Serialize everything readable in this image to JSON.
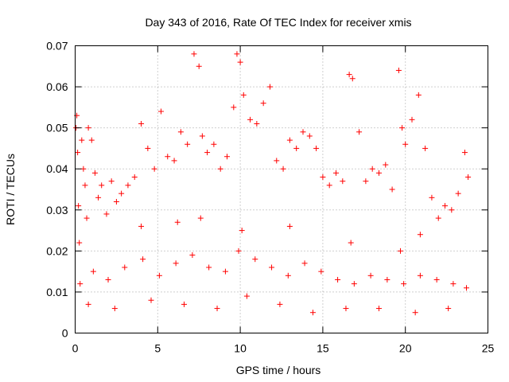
{
  "chart_data": {
    "type": "scatter",
    "title": "Day 343 of 2016, Rate Of TEC Index for receiver xmis",
    "xlabel": "GPS time / hours",
    "ylabel": "ROTI / TECUs",
    "xlim": [
      0,
      25
    ],
    "ylim": [
      0,
      0.07
    ],
    "x_ticks": [
      0,
      5,
      10,
      15,
      20,
      25
    ],
    "y_ticks": [
      0,
      0.01,
      0.02,
      0.03,
      0.04,
      0.05,
      0.06,
      0.07
    ],
    "x_tick_labels": [
      "0",
      "5",
      "10",
      "15",
      "20",
      "25"
    ],
    "y_tick_labels": [
      "0",
      "0.01",
      "0.02",
      "0.03",
      "0.04",
      "0.05",
      "0.06",
      "0.07"
    ],
    "grid": true,
    "marker": "plus",
    "color": "#ff0000",
    "series": [
      {
        "x": [
          0.05,
          0.1,
          0.15,
          0.2,
          0.25,
          0.4,
          0.5,
          0.6,
          0.7,
          0.8,
          1.0,
          1.2,
          1.4,
          1.6,
          1.9,
          2.2,
          2.5,
          2.8,
          3.2,
          3.6,
          4.0,
          4.4,
          4.8,
          5.2,
          5.6,
          6.0,
          6.4,
          6.8,
          7.2,
          7.5,
          7.7,
          8.0,
          8.4,
          8.8,
          9.2,
          9.6,
          9.8,
          10.0,
          10.2,
          10.6,
          11.0,
          11.4,
          11.8,
          12.2,
          12.6,
          13.0,
          13.4,
          13.8,
          14.2,
          14.6,
          15.0,
          15.4,
          15.8,
          16.2,
          16.6,
          16.8,
          17.2,
          17.6,
          18.0,
          18.4,
          18.8,
          19.2,
          19.6,
          19.8,
          20.0,
          20.4,
          20.8,
          21.2,
          21.6,
          22.0,
          22.4,
          22.8,
          23.2,
          23.6,
          23.8,
          0.3,
          1.1,
          2.0,
          3.0,
          4.1,
          5.1,
          6.1,
          7.1,
          8.1,
          9.1,
          9.9,
          10.9,
          11.9,
          12.9,
          13.9,
          14.9,
          15.9,
          16.9,
          17.9,
          18.9,
          19.9,
          20.9,
          21.9,
          22.9,
          23.7,
          0.8,
          2.4,
          4.6,
          6.6,
          8.6,
          10.4,
          12.4,
          14.4,
          16.4,
          18.4,
          20.6,
          22.6,
          10.1,
          7.6,
          6.2,
          4.0,
          16.7,
          19.7,
          20.9,
          13.0
        ],
        "y": [
          0.05,
          0.053,
          0.044,
          0.031,
          0.022,
          0.047,
          0.04,
          0.036,
          0.028,
          0.05,
          0.047,
          0.039,
          0.033,
          0.036,
          0.029,
          0.037,
          0.032,
          0.034,
          0.036,
          0.038,
          0.051,
          0.045,
          0.04,
          0.054,
          0.043,
          0.042,
          0.049,
          0.046,
          0.068,
          0.065,
          0.048,
          0.044,
          0.046,
          0.04,
          0.043,
          0.055,
          0.068,
          0.066,
          0.058,
          0.052,
          0.051,
          0.056,
          0.06,
          0.042,
          0.04,
          0.047,
          0.045,
          0.049,
          0.048,
          0.045,
          0.038,
          0.036,
          0.039,
          0.037,
          0.063,
          0.062,
          0.049,
          0.037,
          0.04,
          0.039,
          0.041,
          0.035,
          0.064,
          0.05,
          0.046,
          0.052,
          0.058,
          0.045,
          0.033,
          0.028,
          0.031,
          0.03,
          0.034,
          0.044,
          0.038,
          0.012,
          0.015,
          0.013,
          0.016,
          0.018,
          0.014,
          0.017,
          0.019,
          0.016,
          0.015,
          0.02,
          0.018,
          0.016,
          0.014,
          0.017,
          0.015,
          0.013,
          0.012,
          0.014,
          0.013,
          0.012,
          0.014,
          0.013,
          0.012,
          0.011,
          0.007,
          0.006,
          0.008,
          0.007,
          0.006,
          0.009,
          0.007,
          0.005,
          0.006,
          0.006,
          0.005,
          0.006,
          0.025,
          0.028,
          0.027,
          0.026,
          0.022,
          0.02,
          0.024,
          0.026
        ]
      }
    ]
  }
}
